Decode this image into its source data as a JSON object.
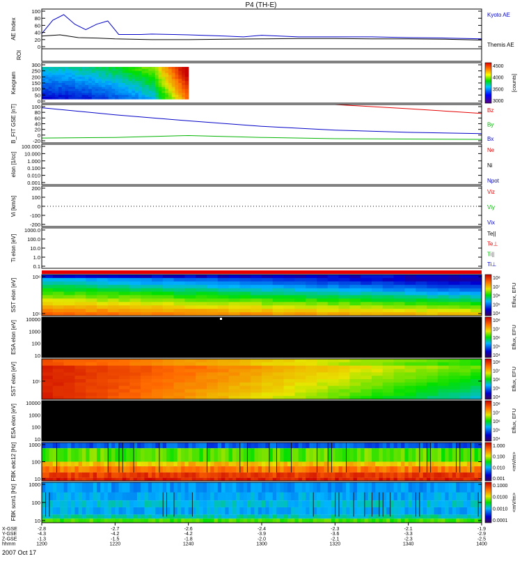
{
  "title": "P4 (TH-E)",
  "date_label": "2007 Oct 17",
  "time_axis": {
    "start": 1200,
    "end": 1400,
    "row_labels": [
      "X-GSE",
      "Y-GSE",
      "Z-GSE",
      "hhmm"
    ],
    "ticks": [
      {
        "t": 1200,
        "vals": [
          "-2.8",
          "-4.3",
          "-1.3",
          "1200"
        ]
      },
      {
        "t": 1220,
        "vals": [
          "-2.7",
          "-4.2",
          "-1.5",
          "1220"
        ]
      },
      {
        "t": 1240,
        "vals": [
          "-2.6",
          "-4.2",
          "-1.8",
          "1240"
        ]
      },
      {
        "t": 1300,
        "vals": [
          "-2.4",
          "-3.9",
          "-2.0",
          "1300"
        ]
      },
      {
        "t": 1320,
        "vals": [
          "-2.3",
          "-3.6",
          "-2.1",
          "1320"
        ]
      },
      {
        "t": 1340,
        "vals": [
          "-2.1",
          "-3.3",
          "-2.3",
          "1340"
        ]
      },
      {
        "t": 1400,
        "vals": [
          "-1.9",
          "-2.9",
          "-2.5",
          "1400"
        ]
      }
    ]
  },
  "chart_data": [
    {
      "type": "line",
      "panel": "ae",
      "ylabel": "AE Index",
      "ylim": [
        0,
        100
      ],
      "yticks": [
        "0",
        "20",
        "40",
        "60",
        "80",
        "100"
      ],
      "series": [
        {
          "name": "Kyoto AE",
          "color": "#0000c8",
          "x": [
            1200,
            1203,
            1206,
            1209,
            1212,
            1215,
            1218,
            1221,
            1224,
            1227,
            1230,
            1240,
            1250,
            1255,
            1300,
            1310,
            1320,
            1330,
            1340,
            1350,
            1400
          ],
          "y": [
            38,
            72,
            86,
            62,
            48,
            62,
            70,
            36,
            36,
            36,
            37,
            35,
            32,
            30,
            34,
            30,
            30,
            30,
            28,
            27,
            25
          ]
        },
        {
          "name": "Themis AE",
          "color": "#000000",
          "x": [
            1200,
            1205,
            1210,
            1215,
            1220,
            1230,
            1240,
            1250,
            1300,
            1310,
            1320,
            1330,
            1340,
            1350,
            1400
          ],
          "y": [
            32,
            35,
            28,
            27,
            25,
            23,
            23,
            24,
            25,
            26,
            26,
            25,
            25,
            24,
            22
          ]
        }
      ]
    },
    {
      "type": "line",
      "panel": "roi",
      "ylabel": "ROI",
      "series": []
    },
    {
      "type": "heatmap",
      "panel": "keogram",
      "ylabel": "Keogram",
      "ylim": [
        0,
        300
      ],
      "yticks": [
        "0",
        "50",
        "100",
        "150",
        "200",
        "250",
        "300"
      ],
      "data_end": 1240,
      "colorbar": {
        "label": "[counts]",
        "ticks": [
          "3000",
          "3500",
          "4000",
          "4500"
        ]
      }
    },
    {
      "type": "line",
      "panel": "bfit",
      "ylabel": "B_FIT GSE [nT]",
      "ylim": [
        -20,
        100
      ],
      "yticks": [
        "-20",
        "0",
        "20",
        "40",
        "60",
        "80",
        "100"
      ],
      "series": [
        {
          "name": "Bz",
          "color": "#e60000",
          "x": [
            1320,
            1340,
            1400
          ],
          "y": [
            100,
            87,
            72
          ]
        },
        {
          "name": "By",
          "color": "#00b400",
          "x": [
            1200,
            1220,
            1240,
            1300,
            1320,
            1340,
            1400
          ],
          "y": [
            -5,
            -3,
            3,
            -3,
            -7,
            -8,
            -9
          ]
        },
        {
          "name": "Bx",
          "color": "#0000c8",
          "x": [
            1200,
            1220,
            1240,
            1300,
            1320,
            1340,
            1400
          ],
          "y": [
            90,
            68,
            49,
            32,
            20,
            13,
            9
          ]
        }
      ]
    },
    {
      "type": "line",
      "panel": "density",
      "ylabel": "eIon [1/cc]",
      "yticks": [
        "0.001",
        "0.010",
        "0.100",
        "1.000",
        "10.000",
        "100.000"
      ],
      "series": [
        {
          "name": "Ne",
          "color": "#e60000"
        },
        {
          "name": "Ni",
          "color": "#000000"
        },
        {
          "name": "Npot",
          "color": "#0000c8"
        }
      ]
    },
    {
      "type": "line",
      "panel": "velocity",
      "ylabel": "Vi [km/s]",
      "ylim": [
        -200,
        200
      ],
      "yticks": [
        "-200",
        "-100",
        "0",
        "100",
        "200"
      ],
      "series": [
        {
          "name": "Viz",
          "color": "#e60000"
        },
        {
          "name": "Viy",
          "color": "#00b400"
        },
        {
          "name": "Vix",
          "color": "#0000c8"
        }
      ]
    },
    {
      "type": "line",
      "panel": "temperature",
      "ylabel": "Ti eIon [eV]",
      "yticks": [
        "0.1",
        "1.0",
        "10.0",
        "100.0",
        "1000.0"
      ],
      "series": [
        {
          "name": "Te||",
          "color": "#000000"
        },
        {
          "name": "Te⊥",
          "color": "#e60000"
        },
        {
          "name": "Ti||",
          "color": "#00b400"
        },
        {
          "name": "Ti⊥",
          "color": "#0000c8"
        }
      ]
    },
    {
      "type": "heatmap",
      "panel": "sst_e",
      "ylabel": "SST eIon [eV]",
      "yticks": [
        "10⁵",
        "10⁶"
      ],
      "colorbar": {
        "label": "Eflux, EFU",
        "ticks": [
          "10⁴",
          "10⁵",
          "10⁶",
          "10⁷",
          "10⁸"
        ]
      }
    },
    {
      "type": "heatmap",
      "panel": "esa_e",
      "ylabel": "ESA eIon [eV]",
      "yticks": [
        "10",
        "100",
        "1000",
        "10000"
      ],
      "colorbar": {
        "label": "Eflux, EFU",
        "ticks": [
          "10⁴",
          "10⁵",
          "10⁶",
          "10⁷",
          "10⁸"
        ]
      }
    },
    {
      "type": "heatmap",
      "panel": "sst_i",
      "ylabel": "SST eIon [eV]",
      "yticks": [
        "10⁵"
      ],
      "colorbar": {
        "label": "Eflux, EFU",
        "ticks": [
          "10⁴",
          "10⁵",
          "10⁶",
          "10⁷",
          "10⁸"
        ]
      }
    },
    {
      "type": "heatmap",
      "panel": "esa_i",
      "ylabel": "ESA eIon [eV]",
      "yticks": [
        "10",
        "100",
        "1000",
        "10000"
      ],
      "colorbar": {
        "label": "Eflux, EFU",
        "ticks": [
          "10⁴",
          "10⁵",
          "10⁶",
          "10⁷",
          "10⁸"
        ]
      }
    },
    {
      "type": "heatmap",
      "panel": "fbk_edc",
      "ylabel": "FBK edc12 [Hz]",
      "yticks": [
        "10",
        "100",
        "1000"
      ],
      "colorbar": {
        "label": "<mV/m>",
        "ticks": [
          "0.001",
          "0.010",
          "0.100",
          "1.000"
        ]
      }
    },
    {
      "type": "heatmap",
      "panel": "fbk_scm",
      "ylabel": "FBK scm1 [Hz]",
      "yticks": [
        "10",
        "100",
        "1000"
      ],
      "colorbar": {
        "label": "<mV/m>",
        "ticks": [
          "0.0001",
          "0.0010",
          "0.0100",
          "0.1000"
        ]
      }
    }
  ]
}
